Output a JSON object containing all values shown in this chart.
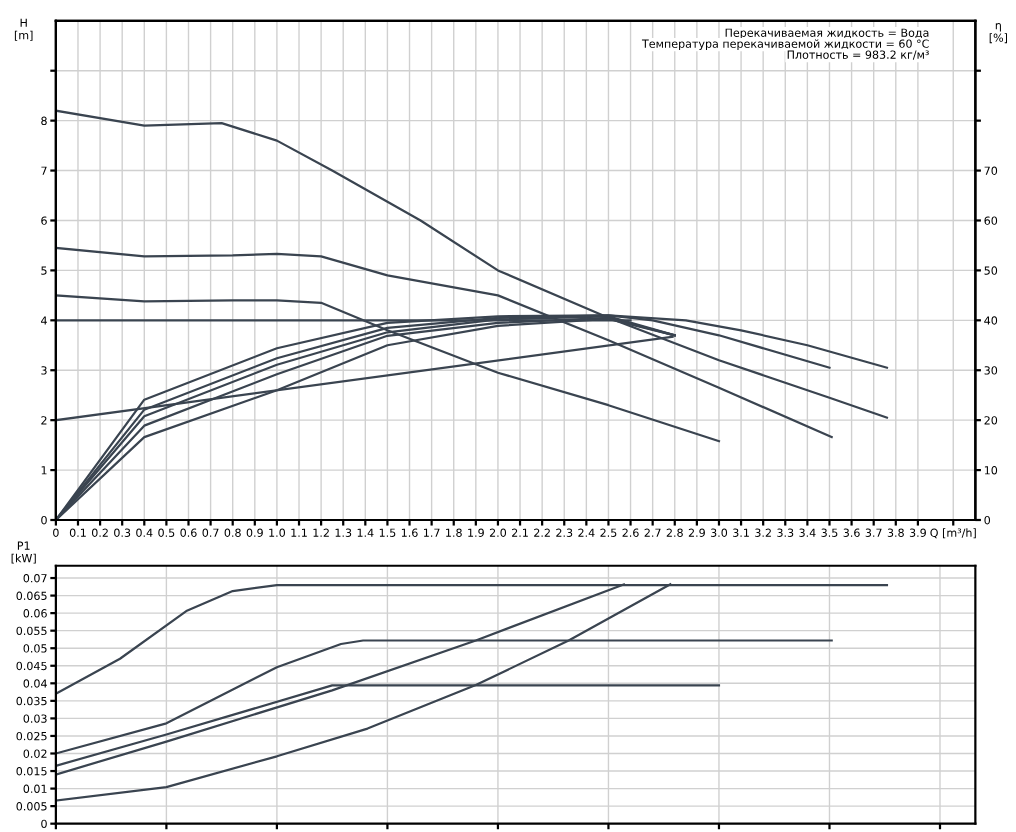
{
  "chart_data": [
    {
      "type": "line",
      "ylabel": "H\n[m]",
      "y2label": "η\n[%]",
      "xlim": [
        0,
        4.16
      ],
      "ylim": [
        0,
        10
      ],
      "y2lim": [
        0,
        100
      ],
      "xticks": [
        0,
        {
          "value": 0.1,
          "label": "0.1"
        },
        {
          "value": 0.2,
          "label": "0.2"
        },
        {
          "value": 0.3,
          "label": "0.3"
        },
        {
          "value": 0.4,
          "label": "0.4"
        },
        {
          "value": 0.5,
          "label": "0.5"
        },
        {
          "value": 0.6,
          "label": "0.6"
        },
        {
          "value": 0.7,
          "label": "0.7"
        },
        {
          "value": 0.8,
          "label": "0.8"
        },
        {
          "value": 0.9,
          "label": "0.9"
        },
        {
          "value": 1.0,
          "label": "1.0"
        },
        {
          "value": 1.1,
          "label": "1.1"
        },
        {
          "value": 1.2,
          "label": "1.2"
        },
        {
          "value": 1.3,
          "label": "1.3"
        },
        {
          "value": 1.4,
          "label": "1.4"
        },
        {
          "value": 1.5,
          "label": "1.5"
        },
        {
          "value": 1.6,
          "label": "1.6"
        },
        {
          "value": 1.7,
          "label": "1.7"
        },
        {
          "value": 1.8,
          "label": "1.8"
        },
        {
          "value": 1.9,
          "label": "1.9"
        },
        {
          "value": 2.0,
          "label": "2.0"
        },
        {
          "value": 2.1,
          "label": "2.1"
        },
        {
          "value": 2.2,
          "label": "2.2"
        },
        {
          "value": 2.3,
          "label": "2.3"
        },
        {
          "value": 2.4,
          "label": "2.4"
        },
        {
          "value": 2.5,
          "label": "2.5"
        },
        {
          "value": 2.6,
          "label": "2.6"
        },
        {
          "value": 2.7,
          "label": "2.7"
        },
        {
          "value": 2.8,
          "label": "2.8"
        },
        {
          "value": 2.9,
          "label": "2.9"
        },
        {
          "value": 3.0,
          "label": "3.0"
        },
        {
          "value": 3.1,
          "label": "3.1"
        },
        {
          "value": 3.2,
          "label": "3.2"
        },
        {
          "value": 3.3,
          "label": "3.3"
        },
        {
          "value": 3.4,
          "label": "3.4"
        },
        {
          "value": 3.5,
          "label": "3.5"
        },
        {
          "value": 3.6,
          "label": "3.6"
        },
        {
          "value": 3.7,
          "label": "3.7"
        },
        {
          "value": 3.8,
          "label": "3.8"
        },
        {
          "value": 3.9,
          "label": "3.9"
        },
        {
          "value": 4.06,
          "label": "Q [m³/h]"
        }
      ],
      "yticks": [
        0,
        1,
        2,
        3,
        4,
        5,
        6,
        7,
        8,
        {
          "value": 9,
          "label": null
        }
      ],
      "y2ticks": [
        0,
        10,
        20,
        30,
        40,
        50,
        60,
        70,
        {
          "value": 80,
          "label": null
        },
        {
          "value": 90,
          "label": null
        }
      ],
      "grid": true,
      "legend": false,
      "marker": "none",
      "line_style": "solid",
      "annotations": [
        "Перекачиваемая жидкость = Вода",
        "Температура перекачиваемой жидкости = 60 °C",
        "Плотность = 983.2 кг/м³"
      ],
      "series": [
        {
          "color": "#3a4450",
          "x": [
            0,
            0.4,
            0.75,
            1.0,
            1.25,
            1.65,
            2.0,
            2.5,
            3.0,
            3.5,
            3.76
          ],
          "values": [
            8.2,
            7.9,
            7.95,
            7.6,
            7.0,
            6.0,
            5.0,
            4.05,
            3.2,
            2.45,
            2.05
          ]
        },
        {
          "color": "#3a4450",
          "x": [
            0,
            0.4,
            0.8,
            1.0,
            1.2,
            1.5,
            2.0,
            2.5,
            3.0,
            3.51
          ],
          "values": [
            5.45,
            5.28,
            5.3,
            5.33,
            5.28,
            4.9,
            4.5,
            3.6,
            2.65,
            1.66
          ]
        },
        {
          "color": "#3a4450",
          "x": [
            0,
            0.4,
            0.8,
            1.0,
            1.2,
            1.5,
            2.0,
            2.5,
            3.0
          ],
          "values": [
            4.5,
            4.38,
            4.4,
            4.4,
            4.35,
            3.8,
            2.95,
            2.3,
            1.58
          ]
        },
        {
          "color": "#3a4450",
          "x": [
            0,
            2.6
          ],
          "values": [
            4.0,
            4.0
          ]
        },
        {
          "color": "#3a4450",
          "x": [
            0,
            2.79
          ],
          "values": [
            2.0,
            3.67
          ]
        },
        {
          "color": "#3a4450",
          "axis": "y2",
          "x": [
            0,
            0.4,
            1.0,
            1.5,
            2.0,
            2.5,
            2.85,
            3.1,
            3.4,
            3.76
          ],
          "values": [
            0,
            24.1,
            34.4,
            39.5,
            40.8,
            41,
            40,
            38,
            35,
            30.5
          ]
        },
        {
          "color": "#3a4450",
          "axis": "y2",
          "x": [
            0,
            0.4,
            1.0,
            1.5,
            2.0,
            2.5,
            2.7,
            3.0,
            3.5
          ],
          "values": [
            0,
            22.1,
            32.4,
            38.5,
            40.5,
            41,
            40,
            37,
            30.5
          ]
        },
        {
          "color": "#3a4450",
          "axis": "y2",
          "x": [
            0,
            0.4,
            1.0,
            1.5,
            2.0,
            2.5,
            2.8
          ],
          "values": [
            0,
            20.8,
            31.1,
            37.6,
            40.2,
            40.8,
            37
          ]
        },
        {
          "color": "#3a4450",
          "axis": "y2",
          "x": [
            0,
            0.4,
            1.0,
            1.5,
            2.0,
            2.5,
            2.8
          ],
          "values": [
            0,
            18.9,
            29.2,
            36.9,
            39.5,
            40.5,
            37
          ]
        },
        {
          "color": "#3a4450",
          "axis": "y2",
          "x": [
            0,
            0.4,
            1.0,
            1.5,
            2.0,
            2.5,
            2.8
          ],
          "values": [
            0,
            16.6,
            26,
            35,
            38.9,
            40.3,
            37
          ]
        }
      ]
    },
    {
      "type": "line",
      "ylabel": "P1\n[kW]",
      "xlim": [
        0,
        4.16
      ],
      "ylim": [
        0,
        0.0735
      ],
      "tick_labels": "y",
      "xticks": [
        {
          "value": 0,
          "label": null
        },
        {
          "value": 0.5,
          "label": null
        },
        {
          "value": 1.0,
          "label": null
        },
        {
          "value": 1.5,
          "label": null
        },
        {
          "value": 2.0,
          "label": null
        },
        {
          "value": 2.5,
          "label": null
        },
        {
          "value": 3.0,
          "label": null
        },
        {
          "value": 3.5,
          "label": null
        },
        {
          "value": 4.0,
          "label": null
        }
      ],
      "yticks": [
        0,
        0.005,
        0.01,
        0.015,
        0.02,
        0.025,
        0.03,
        0.035,
        0.04,
        0.045,
        0.05,
        0.055,
        0.06,
        0.065,
        0.07
      ],
      "grid": true,
      "legend": false,
      "marker": "none",
      "line_style": "solid",
      "series": [
        {
          "color": "#3a4450",
          "x": [
            0,
            0.29,
            0.59,
            0.8,
            1.0,
            3.76
          ],
          "values": [
            0.037,
            0.047,
            0.0606,
            0.0663,
            0.068,
            0.068
          ]
        },
        {
          "color": "#3a4450",
          "x": [
            0,
            0.5,
            1.0,
            1.29,
            1.39,
            3.51
          ],
          "values": [
            0.02,
            0.0286,
            0.0446,
            0.0512,
            0.0522,
            0.0522
          ]
        },
        {
          "color": "#3a4450",
          "x": [
            0,
            0.5,
            1.25,
            3.0
          ],
          "values": [
            0.0165,
            0.0254,
            0.0394,
            0.0394
          ]
        },
        {
          "color": "#3a4450",
          "x": [
            0,
            0.5,
            1.25,
            1.9,
            2.57
          ],
          "values": [
            0.014,
            0.0234,
            0.038,
            0.0522,
            0.0682
          ]
        },
        {
          "color": "#3a4450",
          "x": [
            0,
            0.5,
            1.0,
            1.41,
            1.9,
            2.32,
            2.78
          ],
          "values": [
            0.0066,
            0.0104,
            0.0192,
            0.0271,
            0.0395,
            0.0522,
            0.0682
          ]
        }
      ]
    }
  ]
}
